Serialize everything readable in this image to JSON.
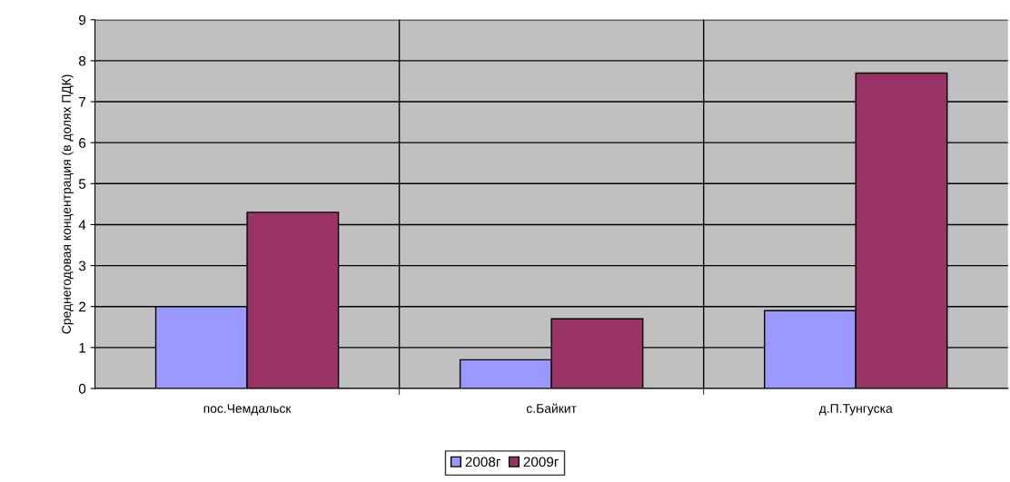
{
  "chart_data": {
    "type": "bar",
    "ylabel": "Среднегодовая концентрация (в долях ПДК)",
    "categories": [
      "пос.Чемдальск",
      "с.Байкит",
      "д.П.Тунгуска"
    ],
    "series": [
      {
        "name": "2008г",
        "color": "#9999ff",
        "values": [
          2.0,
          0.7,
          1.9
        ]
      },
      {
        "name": "2009г",
        "color": "#993366",
        "values": [
          4.3,
          1.7,
          7.7
        ]
      }
    ],
    "ylim": [
      0,
      9
    ],
    "yticks": [
      0,
      1,
      2,
      3,
      4,
      5,
      6,
      7,
      8,
      9
    ],
    "grid": true,
    "legend": "bottom"
  }
}
